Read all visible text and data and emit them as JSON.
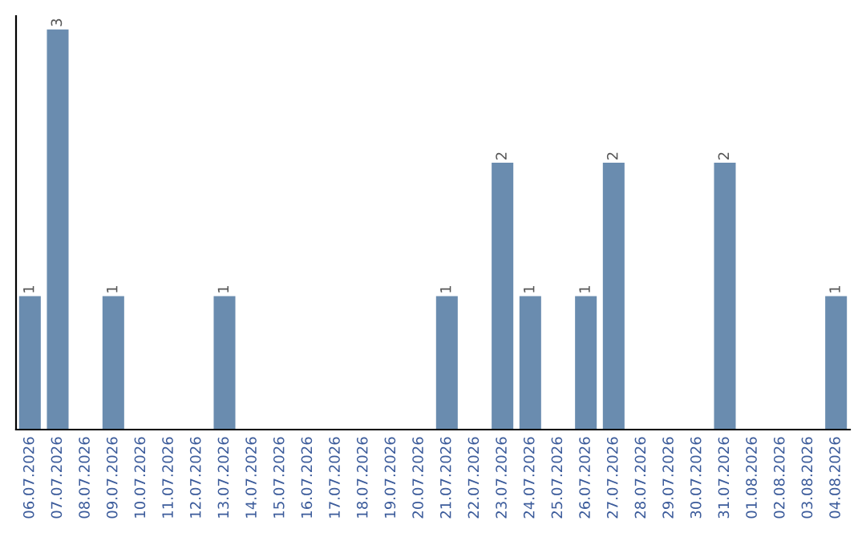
{
  "chart_data": {
    "type": "bar",
    "categories": [
      "06.07.2026",
      "07.07.2026",
      "08.07.2026",
      "09.07.2026",
      "10.07.2026",
      "11.07.2026",
      "12.07.2026",
      "13.07.2026",
      "14.07.2026",
      "15.07.2026",
      "16.07.2026",
      "17.07.2026",
      "18.07.2026",
      "19.07.2026",
      "20.07.2026",
      "21.07.2026",
      "22.07.2026",
      "23.07.2026",
      "24.07.2026",
      "25.07.2026",
      "26.07.2026",
      "27.07.2026",
      "28.07.2026",
      "29.07.2026",
      "30.07.2026",
      "31.07.2026",
      "01.08.2026",
      "02.08.2026",
      "03.08.2026",
      "04.08.2026"
    ],
    "values": [
      1,
      3,
      0,
      1,
      0,
      0,
      0,
      1,
      0,
      0,
      0,
      0,
      0,
      0,
      0,
      1,
      0,
      2,
      1,
      0,
      1,
      2,
      0,
      0,
      0,
      2,
      0,
      0,
      0,
      1
    ],
    "value_labels": [
      "1",
      "3",
      null,
      "1",
      null,
      null,
      null,
      "1",
      null,
      null,
      null,
      null,
      null,
      null,
      null,
      "1",
      null,
      "2",
      "1",
      null,
      "1",
      "2",
      null,
      null,
      null,
      "2",
      null,
      null,
      null,
      "1"
    ],
    "color": "#6a8caf",
    "ylim": [
      0,
      3.1
    ],
    "tick_labels": "x",
    "grid": false,
    "legend": false
  }
}
